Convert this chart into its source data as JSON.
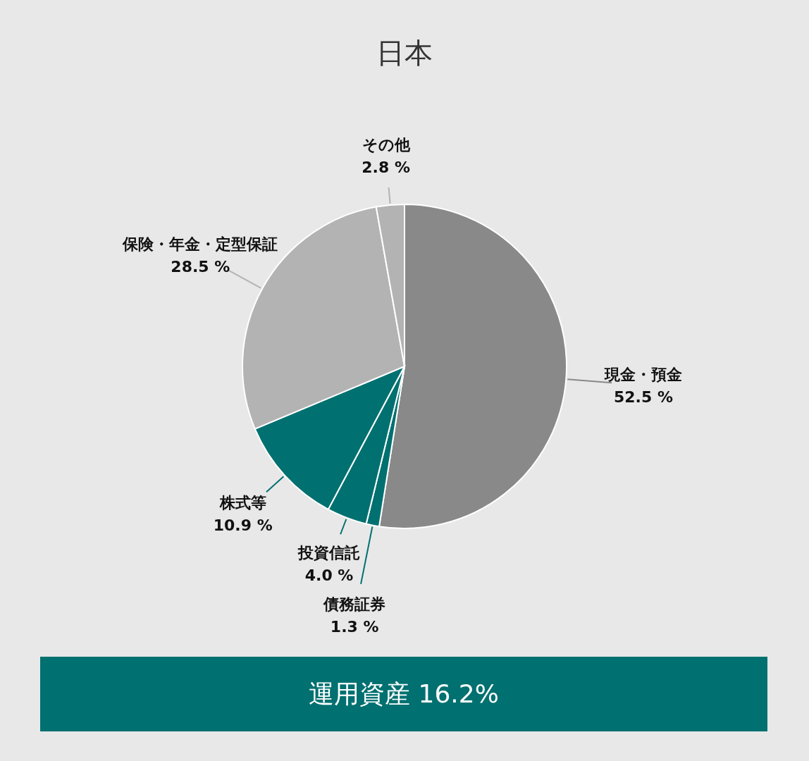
{
  "chart_data": {
    "type": "pie",
    "title": "日本",
    "categories": [
      "現金・預金",
      "債務証券",
      "投資信託",
      "株式等",
      "保険・年金・定型保証",
      "その他"
    ],
    "values": [
      52.5,
      1.3,
      4.0,
      10.9,
      28.5,
      2.8
    ],
    "value_labels": [
      "52.5 %",
      "1.3 %",
      "4.0 %",
      "10.9 %",
      "28.5 %",
      "2.8 %"
    ],
    "colors": [
      "#898989",
      "#007070",
      "#007070",
      "#007070",
      "#b3b3b3",
      "#b3b3b3"
    ],
    "annotations": [
      "運用資産 16.2%"
    ]
  }
}
